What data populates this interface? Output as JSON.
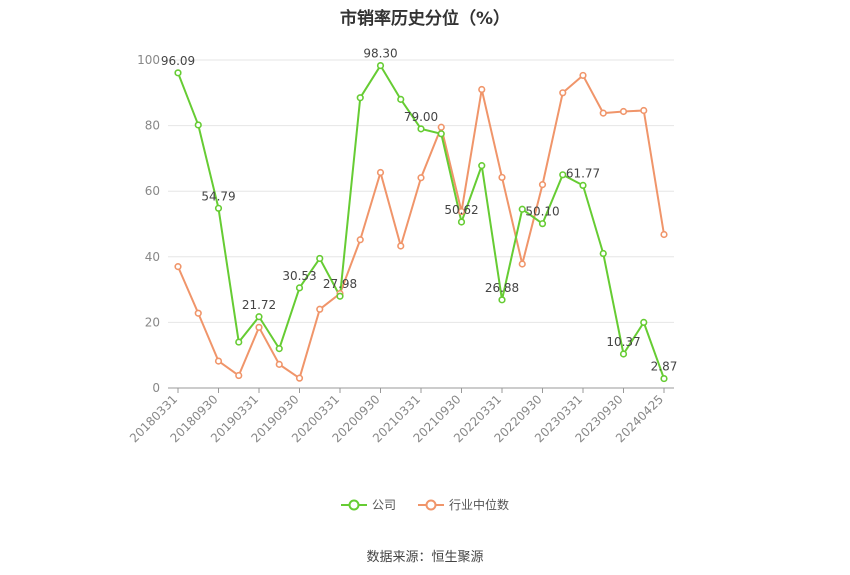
{
  "chart_data": {
    "type": "line",
    "title": "市销率历史分位（%）",
    "categories": [
      "20180331",
      "20180630",
      "20180930",
      "20181231",
      "20190331",
      "20190630",
      "20190930",
      "20191231",
      "20200331",
      "20200630",
      "20200930",
      "20201231",
      "20210331",
      "20210630",
      "20210930",
      "20211231",
      "20220331",
      "20220630",
      "20220930",
      "20221231",
      "20230331",
      "20230630",
      "20230930",
      "20231231",
      "20240425"
    ],
    "tick_labels": [
      "20180331",
      "20180930",
      "20190331",
      "20190930",
      "20200331",
      "20200930",
      "20210331",
      "20210930",
      "20220331",
      "20220930",
      "20230331",
      "20230930",
      "20240425"
    ],
    "ylim": [
      0,
      100
    ],
    "yticks": [
      0,
      20,
      40,
      60,
      80,
      100
    ],
    "grid": true,
    "legend_position": "bottom",
    "series": [
      {
        "name": "公司",
        "color": "#66cc33",
        "values": [
          96.09,
          80.2,
          54.79,
          14.0,
          21.72,
          12.0,
          30.53,
          39.5,
          27.98,
          88.5,
          98.3,
          88.0,
          79.0,
          77.5,
          50.62,
          67.8,
          26.88,
          54.5,
          50.1,
          65.0,
          61.77,
          41.0,
          10.37,
          20.0,
          2.87
        ],
        "labels": {
          "0": "96.09",
          "2": "54.79",
          "4": "21.72",
          "6": "30.53",
          "8": "27.98",
          "10": "98.30",
          "12": "79.00",
          "14": "50.62",
          "16": "26.88",
          "18": "50.10",
          "20": "61.77",
          "22": "10.37",
          "24": "2.87"
        }
      },
      {
        "name": "行业中位数",
        "color": "#f0956a",
        "values": [
          37.0,
          22.8,
          8.2,
          3.8,
          18.5,
          7.2,
          3.0,
          24.0,
          28.8,
          45.2,
          65.7,
          43.3,
          64.1,
          79.5,
          53.8,
          91.0,
          64.2,
          37.8,
          62.0,
          90.0,
          95.3,
          83.8,
          84.3,
          84.6,
          46.8
        ]
      }
    ]
  },
  "source_text": "数据来源：恒生聚源"
}
